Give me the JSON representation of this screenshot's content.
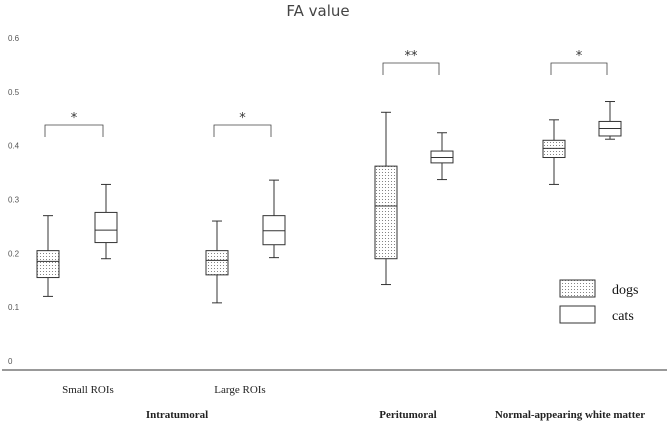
{
  "chart_data": {
    "type": "box",
    "title": "FA value",
    "ylim": [
      0,
      0.6
    ],
    "yticks": [
      "0",
      "0.1",
      "0.2",
      "0.3",
      "0.4",
      "0.5",
      "0.6"
    ],
    "grid": false,
    "legend_position": "bottom-right",
    "series": [
      {
        "name": "dogs",
        "pattern": "dotted"
      },
      {
        "name": "cats",
        "pattern": "plain"
      }
    ],
    "groups": [
      {
        "label": "Small ROIs",
        "significance": "*",
        "boxes": [
          {
            "series": "dogs",
            "min": 0.12,
            "q1": 0.155,
            "median": 0.185,
            "q3": 0.205,
            "max": 0.27
          },
          {
            "series": "cats",
            "min": 0.19,
            "q1": 0.22,
            "median": 0.243,
            "q3": 0.276,
            "max": 0.328
          }
        ]
      },
      {
        "label": "Large ROIs",
        "significance": "*",
        "boxes": [
          {
            "series": "dogs",
            "min": 0.108,
            "q1": 0.16,
            "median": 0.187,
            "q3": 0.205,
            "max": 0.26
          },
          {
            "series": "cats",
            "min": 0.192,
            "q1": 0.216,
            "median": 0.242,
            "q3": 0.27,
            "max": 0.336
          }
        ]
      },
      {
        "label": "",
        "significance": "**",
        "boxes": [
          {
            "series": "dogs",
            "min": 0.142,
            "q1": 0.19,
            "median": 0.288,
            "q3": 0.362,
            "max": 0.462
          },
          {
            "series": "cats",
            "min": 0.337,
            "q1": 0.368,
            "median": 0.378,
            "q3": 0.39,
            "max": 0.424
          }
        ]
      },
      {
        "label": "",
        "significance": "*",
        "boxes": [
          {
            "series": "dogs",
            "min": 0.328,
            "q1": 0.378,
            "median": 0.395,
            "q3": 0.41,
            "max": 0.448
          },
          {
            "series": "cats",
            "min": 0.412,
            "q1": 0.418,
            "median": 0.432,
            "q3": 0.445,
            "max": 0.482
          }
        ]
      }
    ],
    "categories": [
      "Intratumoral",
      "Peritumoral",
      "Normal-appearing white matter"
    ]
  }
}
